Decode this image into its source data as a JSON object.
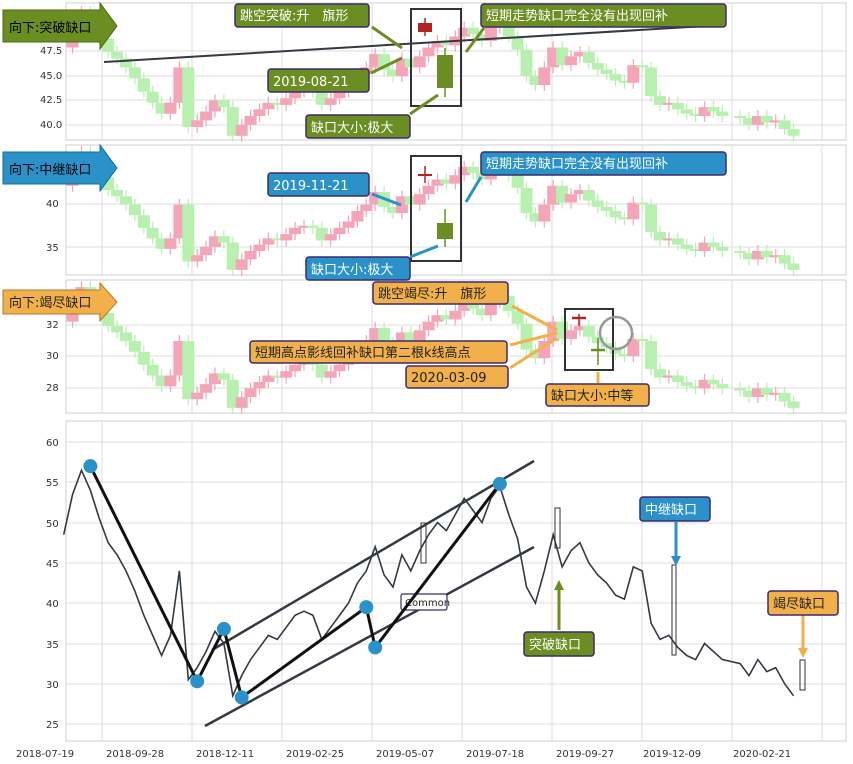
{
  "colors": {
    "up_candle": "#f4a6b8",
    "down_candle": "#b8f0b0",
    "gap_up": "#b22222",
    "gap_down": "#6b8e23",
    "breakaway": "#6b8e23",
    "continuation": "#2a92c9",
    "exhaustion": "#f2b04a",
    "price_line": "#333a44",
    "pivot": "#2a92c9"
  },
  "panels": [
    {
      "tag": "向下:突破缺口",
      "tag_color": "#6b8e23",
      "y_ticks": [
        "47.5",
        "45.0",
        "42.5",
        "40.0"
      ],
      "labels": {
        "pattern": "跳空突破:升　旗形",
        "gap_note": "短期走势缺口完全没有出现回补",
        "date": "2019-08-21",
        "gap_size": "缺口大小:极大"
      }
    },
    {
      "tag": "向下:中继缺口",
      "tag_color": "#2a92c9",
      "y_ticks": [
        "40",
        "35"
      ],
      "labels": {
        "gap_note": "短期走势缺口完全没有出现回补",
        "date": "2019-11-21",
        "gap_size": "缺口大小:极大"
      }
    },
    {
      "tag": "向下:竭尽缺口",
      "tag_color": "#f2b04a",
      "y_ticks": [
        "32",
        "30",
        "28"
      ],
      "labels": {
        "pattern": "跳空竭尽:升　旗形",
        "shadow_note": "短期高点影线回补缺口第二根k线高点",
        "date": "2020-03-09",
        "gap_size": "缺口大小:中等"
      }
    }
  ],
  "main_chart": {
    "x_ticks": [
      "2018-07-19",
      "2018-09-28",
      "2018-12-11",
      "2019-02-25",
      "2019-05-07",
      "2019-07-18",
      "2019-09-27",
      "2019-12-09",
      "2020-02-21"
    ],
    "y_ticks": [
      "60",
      "55",
      "50",
      "45",
      "40",
      "35",
      "30",
      "25"
    ],
    "annotations": {
      "common": "Common",
      "breakaway": "突破缺口",
      "continuation": "中继缺口",
      "exhaustion": "竭尽缺口"
    }
  },
  "chart_data": {
    "type": "line",
    "title": "",
    "xlabel": "",
    "ylabel": "",
    "ylim": [
      23,
      63
    ],
    "x": [
      "2018-08-20",
      "2018-08-27",
      "2018-09-03",
      "2018-09-10",
      "2018-09-17",
      "2018-09-24",
      "2018-10-01",
      "2018-10-08",
      "2018-10-15",
      "2018-10-22",
      "2018-10-29",
      "2018-11-05",
      "2018-11-12",
      "2018-11-19",
      "2018-11-26",
      "2018-12-03",
      "2018-12-10",
      "2018-12-17",
      "2018-12-24",
      "2018-12-31",
      "2019-01-07",
      "2019-01-14",
      "2019-01-21",
      "2019-01-28",
      "2019-02-04",
      "2019-02-11",
      "2019-02-18",
      "2019-02-25",
      "2019-03-04",
      "2019-03-11",
      "2019-03-18",
      "2019-03-25",
      "2019-04-01",
      "2019-04-08",
      "2019-04-15",
      "2019-04-22",
      "2019-04-29",
      "2019-05-06",
      "2019-05-13",
      "2019-05-20",
      "2019-05-27",
      "2019-06-03",
      "2019-06-10",
      "2019-06-17",
      "2019-06-24",
      "2019-07-01",
      "2019-07-08",
      "2019-07-15",
      "2019-07-22",
      "2019-07-29",
      "2019-08-05",
      "2019-08-12",
      "2019-08-19",
      "2019-08-26",
      "2019-09-02",
      "2019-09-09",
      "2019-09-16",
      "2019-09-23",
      "2019-09-30",
      "2019-10-07",
      "2019-10-14",
      "2019-10-21",
      "2019-10-28",
      "2019-11-04",
      "2019-11-11",
      "2019-11-18",
      "2019-11-25",
      "2019-12-02",
      "2019-12-09",
      "2019-12-16",
      "2019-12-23",
      "2019-12-30",
      "2020-01-06",
      "2020-01-13",
      "2020-01-20",
      "2020-02-03",
      "2020-02-10",
      "2020-02-17",
      "2020-02-24",
      "2020-03-02",
      "2020-03-09",
      "2020-03-16"
    ],
    "series": [
      {
        "values": [
          48.5,
          53.5,
          56.5,
          54.0,
          50.5,
          47.5,
          46.0,
          44.0,
          41.5,
          38.5,
          36.0,
          33.5,
          36.0,
          44.0,
          30.5,
          32.0,
          34.0,
          36.5,
          35.0,
          28.5,
          31.0,
          33.0,
          34.5,
          36.0,
          35.5,
          37.0,
          38.5,
          39.0,
          38.5,
          35.5,
          37.0,
          38.5,
          40.0,
          42.5,
          44.0,
          47.0,
          43.5,
          42.0,
          46.0,
          44.0,
          46.5,
          48.5,
          50.0,
          49.0,
          51.0,
          53.0,
          51.5,
          50.0,
          53.0,
          54.5,
          51.0,
          48.0,
          42.0,
          40.0,
          44.0,
          48.5,
          44.5,
          46.5,
          47.5,
          45.0,
          43.5,
          42.5,
          41.0,
          40.5,
          44.5,
          44.0,
          37.5,
          35.5,
          36.0,
          34.5,
          33.5,
          33.0,
          35.0,
          34.0,
          33.0,
          32.5,
          31.0,
          33.0,
          31.5,
          32.0,
          30.0,
          28.5
        ]
      }
    ],
    "gaps": [
      {
        "date": "2019-08-21",
        "kind": "突破缺口",
        "direction": "向下",
        "size": "极大"
      },
      {
        "date": "2019-11-21",
        "kind": "中继缺口",
        "direction": "向下",
        "size": "极大"
      },
      {
        "date": "2020-03-09",
        "kind": "竭尽缺口",
        "direction": "向下",
        "size": "中等"
      }
    ],
    "pivots": [
      57.0,
      30.3,
      36.8,
      28.3,
      39.5,
      34.5,
      54.8
    ]
  }
}
